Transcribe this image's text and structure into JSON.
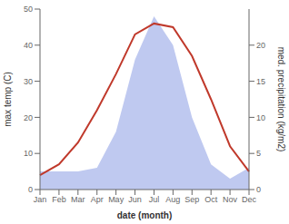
{
  "chart_data": {
    "type": "line",
    "xlabel": "date (month)",
    "ylabel": "max temp (C)",
    "y2label": "med. precipitation (kg/m2)",
    "categories": [
      "Jan",
      "Feb",
      "Mar",
      "Apr",
      "May",
      "Jun",
      "Jul",
      "Aug",
      "Sep",
      "Oct",
      "Nov",
      "Dec"
    ],
    "series": [
      {
        "type": "area",
        "axis": "y2",
        "color": "#bfc9f0",
        "values": [
          2.5,
          2.5,
          2.5,
          3,
          8,
          18,
          24,
          20,
          10,
          3.5,
          1.5,
          3
        ]
      },
      {
        "type": "line",
        "axis": "y",
        "color": "#c0392b",
        "values": [
          4,
          7,
          13,
          22,
          32,
          43,
          46,
          45,
          37,
          25,
          12,
          5
        ]
      }
    ],
    "ylim": [
      0,
      50
    ],
    "yticks": [
      0,
      10,
      20,
      30,
      40,
      50
    ],
    "y2lim": [
      0,
      25
    ],
    "y2ticks": [
      0,
      5,
      10,
      15,
      20
    ],
    "grid": false
  }
}
